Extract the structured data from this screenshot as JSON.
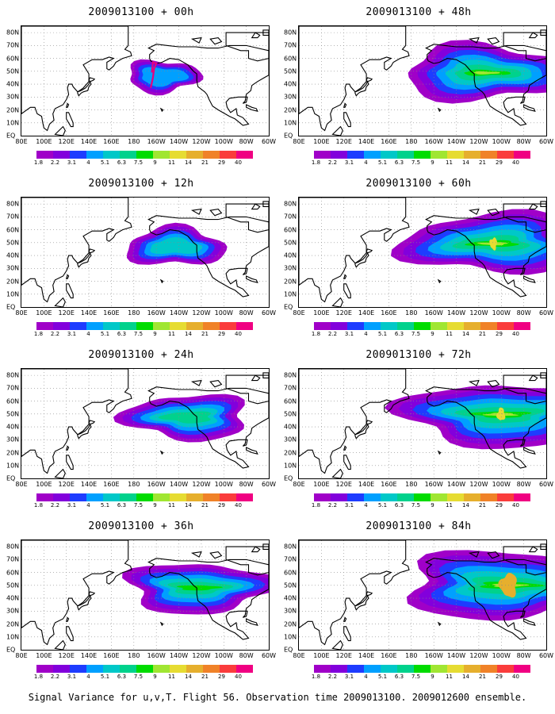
{
  "panels": [
    {
      "title": "2009013100 + 00h",
      "spread": 0.35
    },
    {
      "title": "2009013100 + 48h",
      "spread": 1.25
    },
    {
      "title": "2009013100 + 12h",
      "spread": 0.6
    },
    {
      "title": "2009013100 + 60h",
      "spread": 1.4
    },
    {
      "title": "2009013100 + 24h",
      "spread": 0.85
    },
    {
      "title": "2009013100 + 72h",
      "spread": 1.55
    },
    {
      "title": "2009013100 + 36h",
      "spread": 1.05
    },
    {
      "title": "2009013100 + 84h",
      "spread": 1.7
    }
  ],
  "lat_labels": [
    "80N",
    "70N",
    "60N",
    "50N",
    "40N",
    "30N",
    "20N",
    "10N",
    "EQ"
  ],
  "lon_labels": [
    "80E",
    "100E",
    "120E",
    "140E",
    "160E",
    "180",
    "160W",
    "140W",
    "120W",
    "100W",
    "80W",
    "60W"
  ],
  "colorbar": {
    "labels": [
      "1.8",
      "2.2",
      "3.1",
      "4",
      "5.1",
      "6.3",
      "7.5",
      "9",
      "11",
      "14",
      "21",
      "29",
      "40"
    ],
    "colors": [
      "#a000c8",
      "#8200dc",
      "#1e3cff",
      "#00a0ff",
      "#00c8c8",
      "#00d28c",
      "#00dc00",
      "#a0e632",
      "#e6dc32",
      "#e6af2d",
      "#f08228",
      "#fa3c3c",
      "#f00082"
    ]
  },
  "caption": "Signal Variance for u,v,T. Flight 56. Observation time 2009013100. 2009012600 ensemble."
}
